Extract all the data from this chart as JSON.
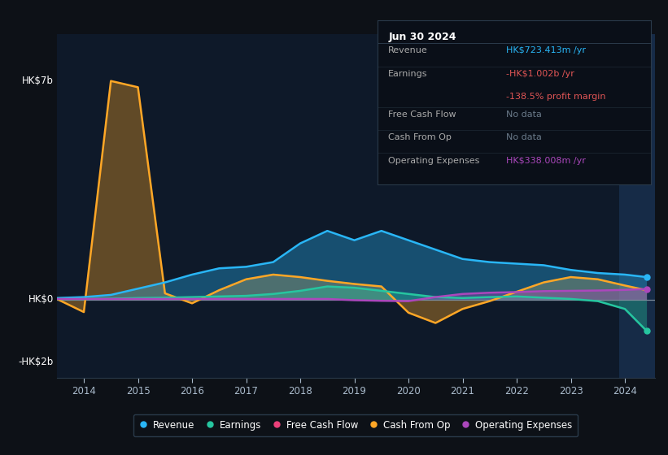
{
  "bg_color": "#0d1117",
  "plot_bg_color": "#0e1929",
  "grid_color": "#1e2e40",
  "zero_line_color": "#7a8a9a",
  "years": [
    2013.5,
    2014.0,
    2014.5,
    2015.0,
    2015.5,
    2016.0,
    2016.5,
    2017.0,
    2017.5,
    2018.0,
    2018.5,
    2019.0,
    2019.5,
    2020.0,
    2020.5,
    2021.0,
    2021.5,
    2022.0,
    2022.5,
    2023.0,
    2023.5,
    2024.0,
    2024.4
  ],
  "revenue": [
    0.05,
    0.08,
    0.15,
    0.35,
    0.55,
    0.8,
    1.0,
    1.05,
    1.2,
    1.8,
    2.2,
    1.9,
    2.2,
    1.9,
    1.6,
    1.3,
    1.2,
    1.15,
    1.1,
    0.95,
    0.85,
    0.8,
    0.72
  ],
  "earnings": [
    0.02,
    0.02,
    0.03,
    0.05,
    0.06,
    0.08,
    0.1,
    0.12,
    0.18,
    0.28,
    0.42,
    0.38,
    0.28,
    0.18,
    0.08,
    0.05,
    0.08,
    0.1,
    0.06,
    0.02,
    -0.05,
    -0.3,
    -1.0
  ],
  "cash_from_op": [
    0.02,
    -0.4,
    7.0,
    6.8,
    0.2,
    -0.12,
    0.3,
    0.65,
    0.8,
    0.72,
    0.6,
    0.5,
    0.42,
    -0.42,
    -0.75,
    -0.3,
    -0.05,
    0.25,
    0.55,
    0.72,
    0.65,
    0.45,
    0.3
  ],
  "operating_expenses": [
    0.02,
    0.02,
    0.02,
    0.02,
    0.02,
    0.02,
    0.02,
    0.02,
    0.02,
    0.02,
    0.02,
    -0.02,
    -0.04,
    -0.05,
    0.08,
    0.18,
    0.22,
    0.24,
    0.27,
    0.28,
    0.29,
    0.31,
    0.34
  ],
  "revenue_color": "#29b6f6",
  "earnings_color": "#26c6a0",
  "cash_from_op_color": "#ffa726",
  "operating_expenses_color": "#ab47bc",
  "free_cash_flow_color": "#ec407a",
  "ylim_min": -2.5,
  "ylim_max": 8.5,
  "xlim_min": 2013.5,
  "xlim_max": 2024.55,
  "highlight_rect_x": 2023.9,
  "highlight_rect_color": "#1a3354",
  "hk7b_y": 7.0,
  "hk0_y": 0.0,
  "hkm2b_y": -2.0,
  "hk7b_label": "HK$7b",
  "hk0_label": "HK$0",
  "hkm2b_label": "-HK$2b",
  "xticks": [
    2014,
    2015,
    2016,
    2017,
    2018,
    2019,
    2020,
    2021,
    2022,
    2023,
    2024
  ],
  "legend_items": [
    "Revenue",
    "Earnings",
    "Free Cash Flow",
    "Cash From Op",
    "Operating Expenses"
  ],
  "legend_colors": [
    "#29b6f6",
    "#26c6a0",
    "#ec407a",
    "#ffa726",
    "#ab47bc"
  ],
  "info_box": {
    "date": "Jun 30 2024",
    "revenue_label": "Revenue",
    "revenue_val": "HK$723.413m /yr",
    "revenue_color": "#29b6f6",
    "earnings_label": "Earnings",
    "earnings_val": "-HK$1.002b /yr",
    "earnings_color": "#e05555",
    "margin_val": "-138.5% profit margin",
    "margin_color": "#e05555",
    "fcf_label": "Free Cash Flow",
    "fcf_val": "No data",
    "fcf_color": "#6a7a8a",
    "cash_label": "Cash From Op",
    "cash_val": "No data",
    "cash_color": "#6a7a8a",
    "opex_label": "Operating Expenses",
    "opex_val": "HK$338.008m /yr",
    "opex_color": "#ab47bc"
  }
}
